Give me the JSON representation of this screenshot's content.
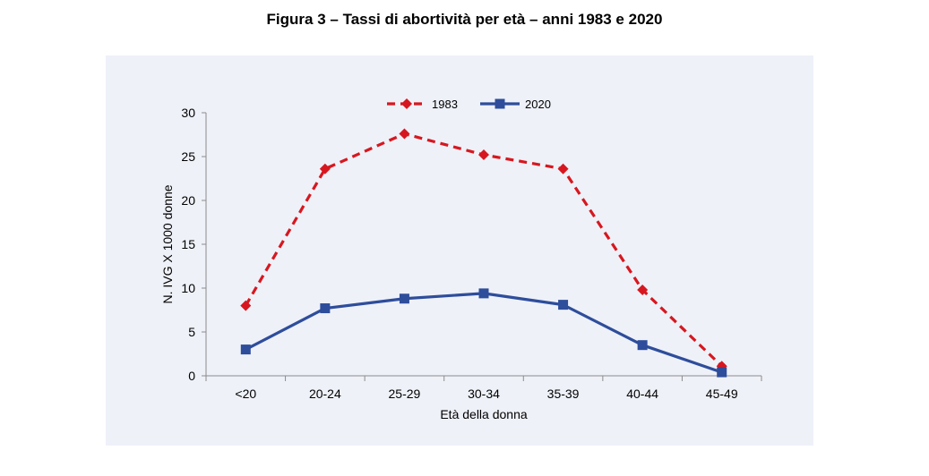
{
  "chart_data": {
    "type": "line",
    "title": "Figura 3 – Tassi di abortività per età – anni 1983 e 2020",
    "xlabel": "Età della donna",
    "ylabel": "N. IVG X 1000 donne",
    "categories": [
      "<20",
      "20-24",
      "25-29",
      "30-34",
      "35-39",
      "40-44",
      "45-49"
    ],
    "ylim": [
      0,
      30
    ],
    "yticks": [
      0,
      5,
      10,
      15,
      20,
      25,
      30
    ],
    "grid": false,
    "legend_position": "top-center",
    "series": [
      {
        "name": "1983",
        "values": [
          8.0,
          23.6,
          27.6,
          25.2,
          23.6,
          9.8,
          1.1
        ],
        "color": "#d7171f",
        "style": "dashed",
        "marker": "diamond"
      },
      {
        "name": "2020",
        "values": [
          3.0,
          7.7,
          8.8,
          9.4,
          8.1,
          3.5,
          0.4
        ],
        "color": "#2e4d9b",
        "style": "solid",
        "marker": "square"
      }
    ]
  }
}
